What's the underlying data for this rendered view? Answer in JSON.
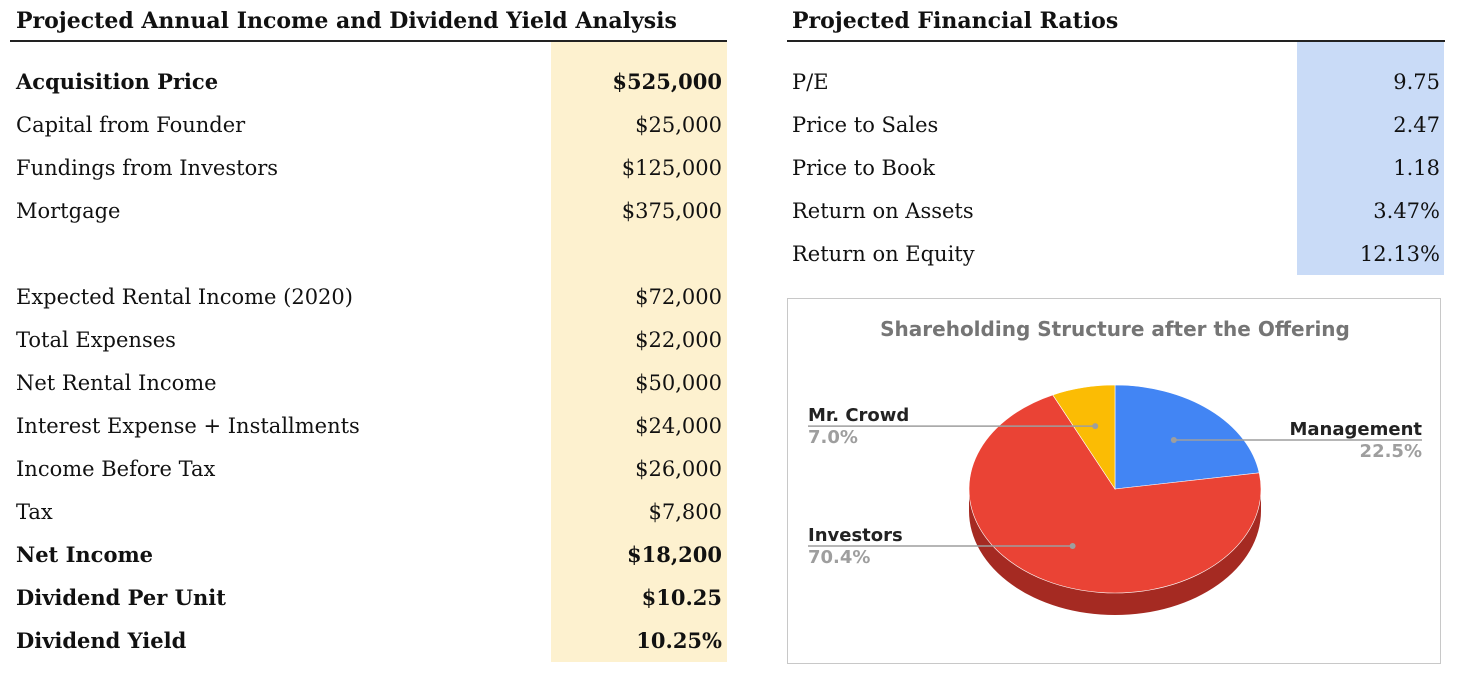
{
  "income_table": {
    "title": "Projected Annual Income and Dividend Yield Analysis",
    "rows": [
      {
        "label": "Acquisition Price",
        "value": "$525,000",
        "bold": true
      },
      {
        "label": "Capital from Founder",
        "value": "$25,000",
        "bold": false
      },
      {
        "label": "Fundings from Investors",
        "value": "$125,000",
        "bold": false
      },
      {
        "label": "Mortgage",
        "value": "$375,000",
        "bold": false
      },
      {
        "label": "Expected Rental Income (2020)",
        "value": "$72,000",
        "bold": false
      },
      {
        "label": "Total Expenses",
        "value": "$22,000",
        "bold": false
      },
      {
        "label": "Net Rental Income",
        "value": "$50,000",
        "bold": false
      },
      {
        "label": "Interest Expense + Installments",
        "value": "$24,000",
        "bold": false
      },
      {
        "label": "Income Before Tax",
        "value": "$26,000",
        "bold": false
      },
      {
        "label": "Tax",
        "value": "$7,800",
        "bold": false
      },
      {
        "label": "Net Income",
        "value": "$18,200",
        "bold": true
      },
      {
        "label": "Dividend Per Unit",
        "value": "$10.25",
        "bold": true
      },
      {
        "label": "Dividend Yield",
        "value": "10.25%",
        "bold": true
      }
    ]
  },
  "ratios_table": {
    "title": "Projected Financial Ratios",
    "rows": [
      {
        "label": "P/E",
        "value": "9.75"
      },
      {
        "label": "Price to Sales",
        "value": "2.47"
      },
      {
        "label": "Price to Book",
        "value": "1.18"
      },
      {
        "label": "Return on Assets",
        "value": "3.47%"
      },
      {
        "label": "Return on Equity",
        "value": "12.13%"
      }
    ]
  },
  "chart_data": {
    "type": "pie",
    "style": "3d",
    "title": "Shareholding Structure after the Offering",
    "slices": [
      {
        "label": "Management",
        "value": 22.5,
        "display": "22.5%",
        "color": "#4285f4",
        "side_color": "#2f5fb3"
      },
      {
        "label": "Investors",
        "value": 70.4,
        "display": "70.4%",
        "color": "#ea4335",
        "side_color": "#a52a22"
      },
      {
        "label": "Mr. Crowd",
        "value": 7.0,
        "display": "7.0%",
        "color": "#fbbc04",
        "side_color": "#b8870a"
      }
    ],
    "legend": "none",
    "label_position": "outside-with-leader-lines"
  },
  "colors": {
    "income_highlight": "#fdf1cf",
    "ratios_highlight": "#c9dbf7",
    "chart_title": "#757575",
    "chart_label": "#222222",
    "chart_percent": "#9e9e9e"
  }
}
